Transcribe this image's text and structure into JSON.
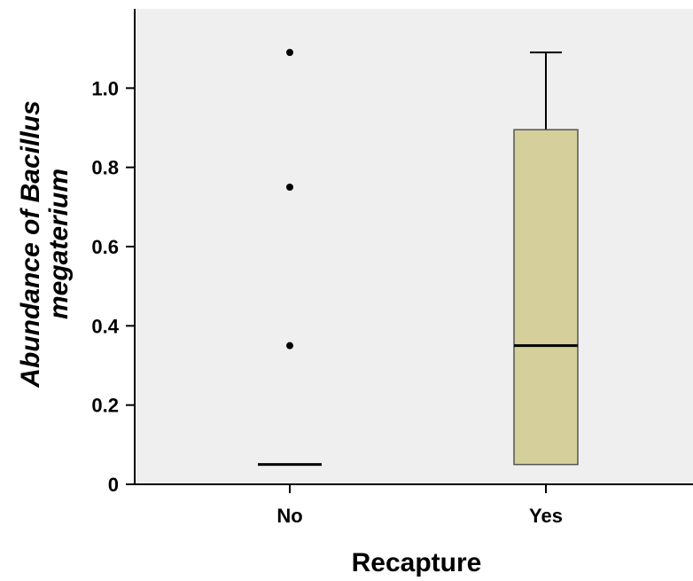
{
  "chart_data": {
    "type": "box",
    "xlabel": "Recapture",
    "ylabel_lines": [
      "Abundance of Bacillus",
      "megaterium"
    ],
    "ylim": [
      0,
      1.2
    ],
    "yticks": [
      0,
      0.2,
      0.4,
      0.6,
      0.8,
      1.0
    ],
    "ytick_labels": [
      "0",
      "0.2",
      "0.4",
      "0.6",
      "0.8",
      "1.0"
    ],
    "categories": [
      "No",
      "Yes"
    ],
    "boxes": [
      {
        "category": "No",
        "whisker_low": 0.05,
        "q1": 0.05,
        "median": 0.05,
        "q3": 0.05,
        "whisker_high": 0.05,
        "outliers": [
          0.35,
          0.75,
          1.09
        ]
      },
      {
        "category": "Yes",
        "whisker_low": 0.05,
        "q1": 0.05,
        "median": 0.35,
        "q3": 0.895,
        "whisker_high": 1.09,
        "outliers": []
      }
    ],
    "colors": {
      "plot_background": "#efefef",
      "box_fill": "#d5cf9b",
      "line": "#000000",
      "box_edge": "#555555"
    },
    "grid": false,
    "legend": "none"
  }
}
